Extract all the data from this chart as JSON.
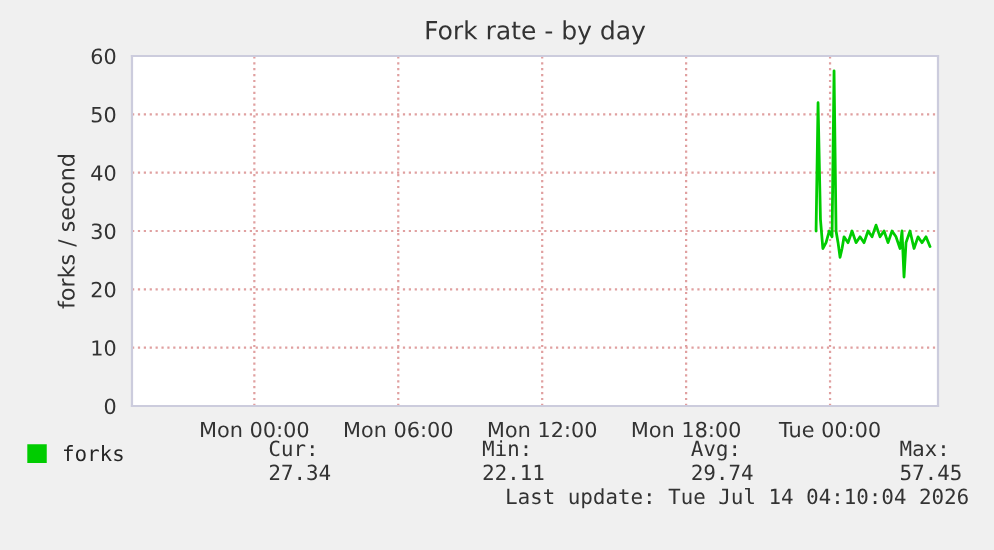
{
  "chart_data": {
    "type": "line",
    "title": "Fork rate - by day",
    "ylabel": "forks / second",
    "x": [
      "2026-07-13T23:25",
      "2026-07-13T23:30",
      "2026-07-13T23:36",
      "2026-07-13T23:42",
      "2026-07-13T23:50",
      "2026-07-13T23:58",
      "2026-07-14T00:05",
      "2026-07-14T00:10",
      "2026-07-14T00:15",
      "2026-07-14T00:20",
      "2026-07-14T00:25",
      "2026-07-14T00:30",
      "2026-07-14T00:35",
      "2026-07-14T00:45",
      "2026-07-14T00:55",
      "2026-07-14T01:05",
      "2026-07-14T01:15",
      "2026-07-14T01:25",
      "2026-07-14T01:35",
      "2026-07-14T01:45",
      "2026-07-14T01:55",
      "2026-07-14T02:05",
      "2026-07-14T02:15",
      "2026-07-14T02:25",
      "2026-07-14T02:35",
      "2026-07-14T02:45",
      "2026-07-14T02:55",
      "2026-07-14T03:00",
      "2026-07-14T03:05",
      "2026-07-14T03:10",
      "2026-07-14T03:20",
      "2026-07-14T03:30",
      "2026-07-14T03:40",
      "2026-07-14T03:50",
      "2026-07-14T04:00",
      "2026-07-14T04:10"
    ],
    "series": [
      {
        "name": "forks",
        "color": "#00cc00",
        "values": [
          30,
          52,
          32,
          27,
          28,
          30,
          29,
          57.45,
          30,
          28,
          25.5,
          27,
          29,
          28,
          30,
          28,
          29,
          28,
          30,
          29,
          31,
          29,
          30,
          28,
          30,
          29,
          27,
          30,
          22.11,
          28,
          30,
          27,
          29,
          28,
          29,
          27.34
        ]
      }
    ],
    "xlim": [
      "2026-07-12T18:54",
      "2026-07-14T04:30"
    ],
    "xticks": [
      {
        "value": "2026-07-13T00:00",
        "label": "Mon 00:00"
      },
      {
        "value": "2026-07-13T06:00",
        "label": "Mon 06:00"
      },
      {
        "value": "2026-07-13T12:00",
        "label": "Mon 12:00"
      },
      {
        "value": "2026-07-13T18:00",
        "label": "Mon 18:00"
      },
      {
        "value": "2026-07-14T00:00",
        "label": "Tue 00:00"
      }
    ],
    "ylim": [
      0,
      60
    ],
    "yticks": [
      0,
      10,
      20,
      30,
      40,
      50,
      60
    ],
    "grid": true,
    "legend": "bottom",
    "marker": "none",
    "line_style": "solid",
    "annotations": [
      "Cur:",
      "27.34",
      "Min:",
      "22.11",
      "Avg:",
      "29.74",
      "Max:",
      "57.45",
      "Last update: Tue Jul 14 04:10:04 2026"
    ]
  }
}
